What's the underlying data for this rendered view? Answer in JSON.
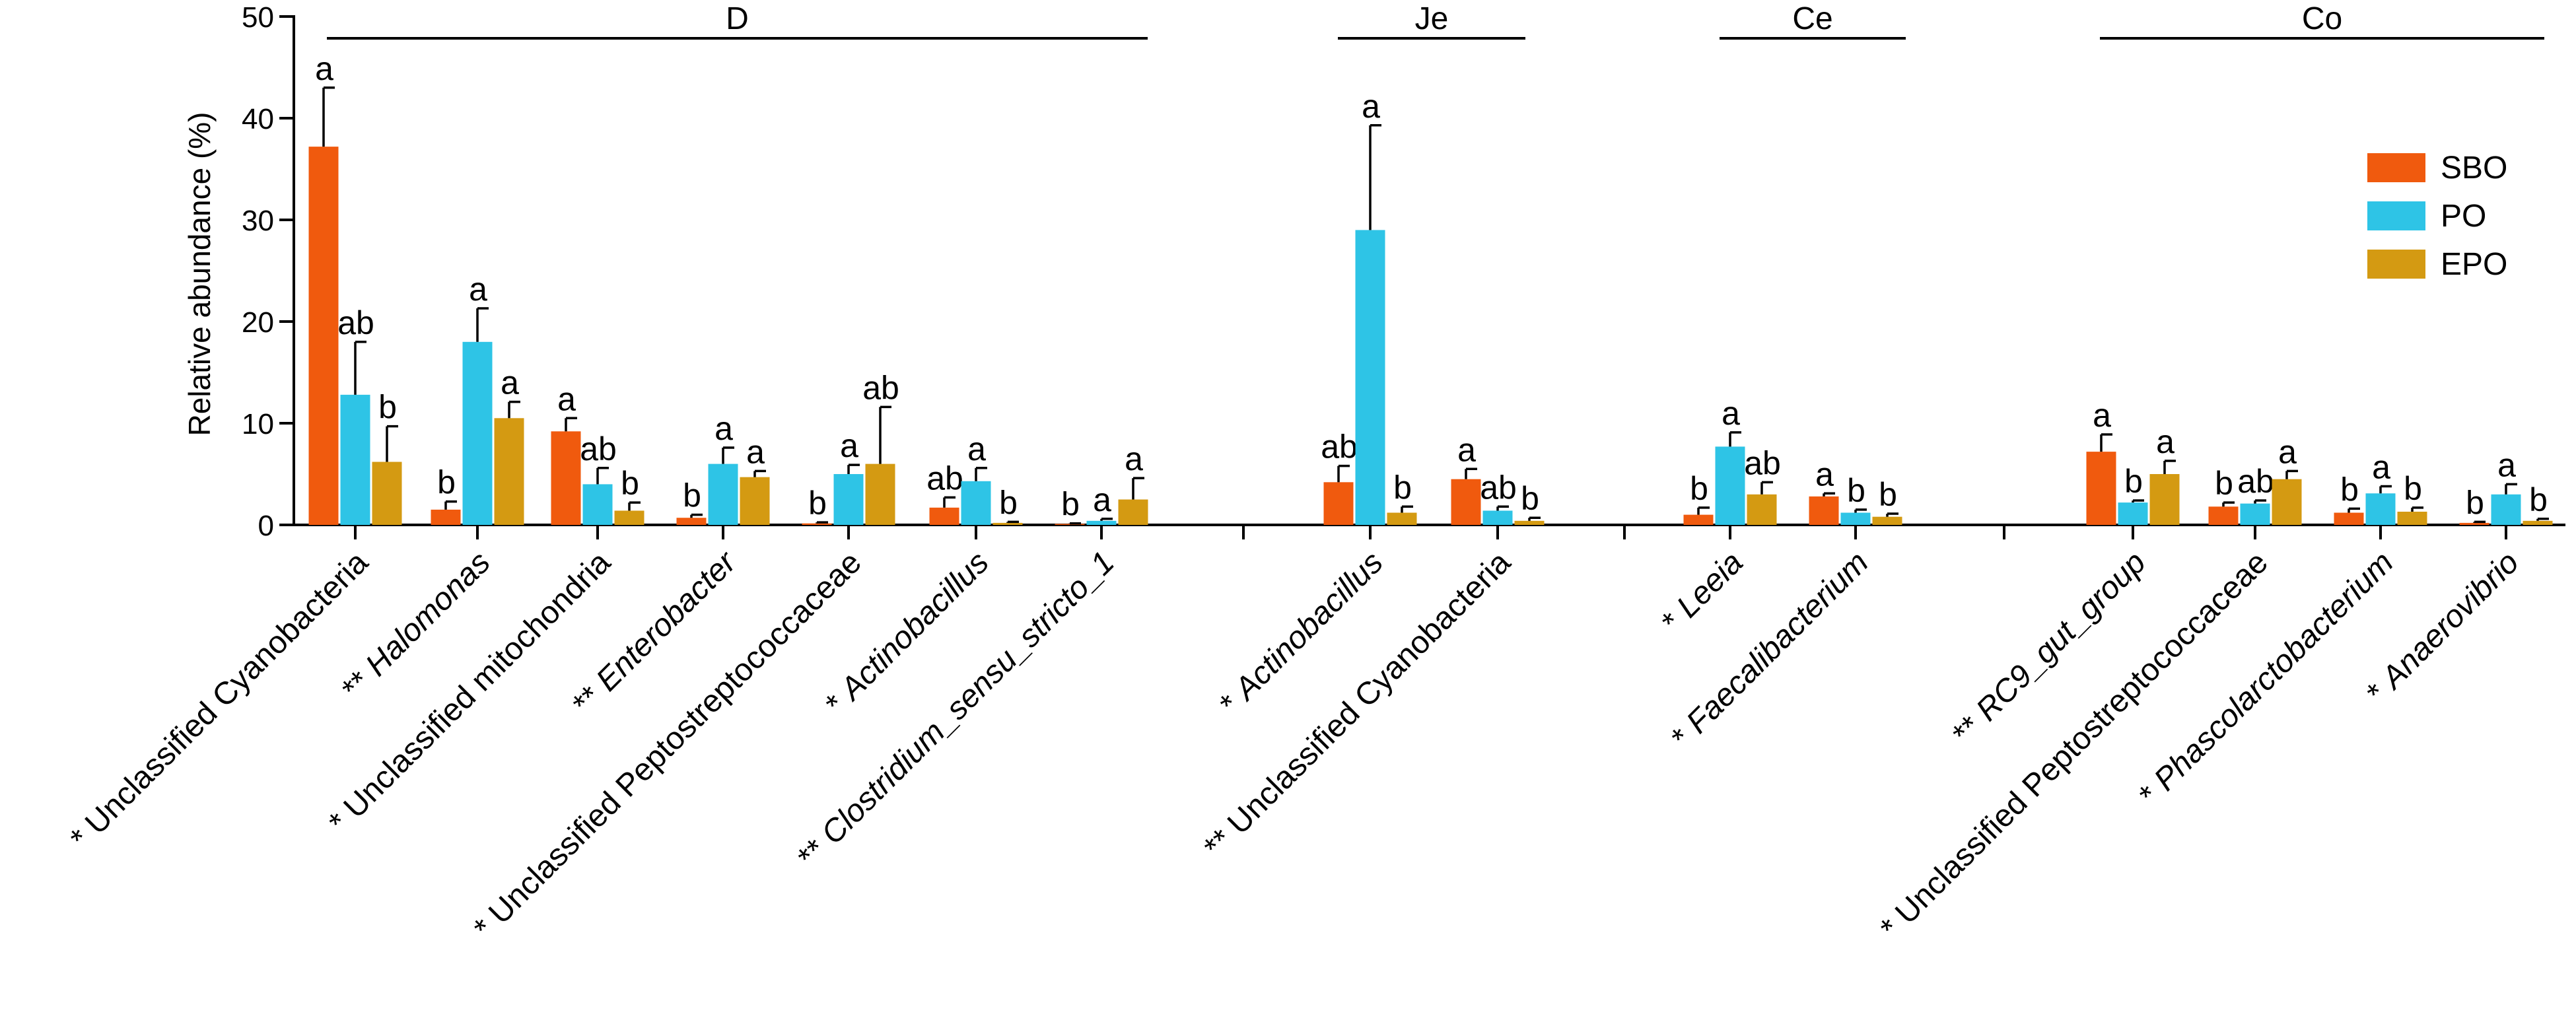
{
  "chart_data": {
    "type": "bar",
    "title": "",
    "ylabel": "Relative abundance (%)",
    "xlabel": "",
    "ylim": [
      0,
      50
    ],
    "yticks": [
      0,
      10,
      20,
      30,
      40,
      50
    ],
    "grid": false,
    "legend_position": "top-right",
    "series": [
      {
        "name": "SBO",
        "color": "#F05A0E"
      },
      {
        "name": "PO",
        "color": "#2EC4E6"
      },
      {
        "name": "EPO",
        "color": "#D49A12"
      }
    ],
    "groups": [
      {
        "name": "D",
        "categories": [
          {
            "prefix": "*",
            "name": "Unclassified Cyanobacteria",
            "italic": false,
            "values": [
              37.2,
              12.8,
              6.2
            ],
            "errors": [
              5.8,
              5.2,
              3.5
            ],
            "letters": [
              "a",
              "ab",
              "b"
            ]
          },
          {
            "prefix": "**",
            "name": "Halomonas",
            "italic": true,
            "values": [
              1.5,
              18.0,
              10.5
            ],
            "errors": [
              0.8,
              3.3,
              1.6
            ],
            "letters": [
              "b",
              "a",
              "a"
            ]
          },
          {
            "prefix": "*",
            "name": "Unclassified mitochondria",
            "italic": false,
            "values": [
              9.2,
              4.0,
              1.4
            ],
            "errors": [
              1.3,
              1.6,
              0.8
            ],
            "letters": [
              "a",
              "ab",
              "b"
            ]
          },
          {
            "prefix": "**",
            "name": "Enterobacter",
            "italic": true,
            "values": [
              0.7,
              6.0,
              4.7
            ],
            "errors": [
              0.3,
              1.6,
              0.6
            ],
            "letters": [
              "b",
              "a",
              "a"
            ]
          },
          {
            "prefix": "*",
            "name": "Unclassified Peptostreptococcaceae",
            "italic": false,
            "values": [
              0.15,
              5.0,
              6.0
            ],
            "errors": [
              0.1,
              0.9,
              5.6
            ],
            "letters": [
              "b",
              "a",
              "ab"
            ]
          },
          {
            "prefix": "*",
            "name": "Actinobacillus",
            "italic": true,
            "values": [
              1.7,
              4.3,
              0.2
            ],
            "errors": [
              1.0,
              1.3,
              0.1
            ],
            "letters": [
              "ab",
              "a",
              "b"
            ]
          },
          {
            "prefix": "**",
            "name": "Clostridium_sensu_stricto_1",
            "italic": true,
            "values": [
              0.1,
              0.4,
              2.5
            ],
            "errors": [
              0.05,
              0.2,
              2.1
            ],
            "letters": [
              "b",
              "a",
              "a"
            ]
          }
        ]
      },
      {
        "name": "Je",
        "categories": [
          {
            "prefix": "*",
            "name": "Actinobacillus",
            "italic": true,
            "values": [
              4.2,
              29.0,
              1.2
            ],
            "errors": [
              1.6,
              10.3,
              0.6
            ],
            "letters": [
              "ab",
              "a",
              "b"
            ]
          },
          {
            "prefix": "**",
            "name": "Unclassified Cyanobacteria",
            "italic": false,
            "values": [
              4.5,
              1.4,
              0.4
            ],
            "errors": [
              1.0,
              0.4,
              0.3
            ],
            "letters": [
              "a",
              "ab",
              "b"
            ]
          }
        ]
      },
      {
        "name": "Ce",
        "categories": [
          {
            "prefix": "*",
            "name": "Leeia",
            "italic": true,
            "values": [
              1.0,
              7.7,
              3.0
            ],
            "errors": [
              0.7,
              1.4,
              1.2
            ],
            "letters": [
              "b",
              "a",
              "ab"
            ]
          },
          {
            "prefix": "*",
            "name": "Faecalibacterium",
            "italic": true,
            "values": [
              2.8,
              1.2,
              0.8
            ],
            "errors": [
              0.3,
              0.3,
              0.3
            ],
            "letters": [
              "a",
              "b",
              "b"
            ]
          }
        ]
      },
      {
        "name": "Co",
        "categories": [
          {
            "prefix": "**",
            "name": "RC9_gut_group",
            "italic": true,
            "values": [
              7.2,
              2.2,
              5.0
            ],
            "errors": [
              1.7,
              0.2,
              1.3
            ],
            "letters": [
              "a",
              "b",
              "a"
            ]
          },
          {
            "prefix": "*",
            "name": "Unclassified Peptostreptococcaceae",
            "italic": false,
            "values": [
              1.8,
              2.1,
              4.5
            ],
            "errors": [
              0.4,
              0.3,
              0.8
            ],
            "letters": [
              "b",
              "ab",
              "a"
            ]
          },
          {
            "prefix": "*",
            "name": "Phascolarctobacterium",
            "italic": true,
            "values": [
              1.2,
              3.1,
              1.3
            ],
            "errors": [
              0.4,
              0.7,
              0.4
            ],
            "letters": [
              "b",
              "a",
              "b"
            ]
          },
          {
            "prefix": "*",
            "name": "Anaerovibrio",
            "italic": true,
            "values": [
              0.2,
              3.0,
              0.4
            ],
            "errors": [
              0.1,
              1.0,
              0.2
            ],
            "letters": [
              "b",
              "a",
              "b"
            ]
          }
        ]
      }
    ]
  }
}
